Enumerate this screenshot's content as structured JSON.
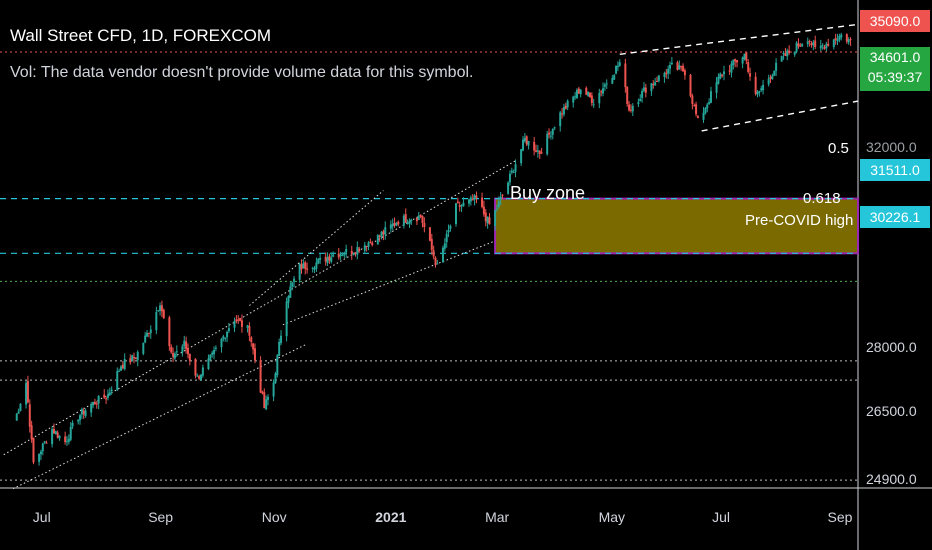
{
  "header": {
    "title": "Wall Street CFD, 1D, FOREXCOM",
    "volume_note": "Vol: The data vendor doesn't provide volume data for this symbol."
  },
  "colors": {
    "background": "#000000",
    "up_candle": "#26a69a",
    "down_candle": "#ef5350",
    "buy_zone_fill": "#7a6a00",
    "buy_zone_border": "#9c27b0",
    "fib_line": "#26c6da",
    "tag_red": "#ef5350",
    "tag_green": "#26a641",
    "tag_cyan": "#26c6da"
  },
  "price_tags": {
    "last_high": "35090.0",
    "current": "34601.0",
    "countdown": "05:39:37",
    "fib_05": "31511.0",
    "fib_0618": "30226.1"
  },
  "labels": {
    "buy_zone": "Buy zone",
    "fib_05": "0.5",
    "fib_0618": "0.618",
    "pre_covid": "Pre-COVID high"
  },
  "chart_data": {
    "type": "line",
    "title": "Wall Street CFD, 1D, FOREXCOM",
    "x_ticks": [
      "Jul",
      "Sep",
      "Nov",
      "2021",
      "Mar",
      "May",
      "Jul",
      "Sep"
    ],
    "y_ticks": [
      "28000.0",
      "26500.0",
      "24900.0"
    ],
    "y_partial_tick": "32000.0",
    "ylim": [
      24200,
      36000
    ],
    "series": [
      {
        "values": [
          [
            "2020-06-16",
            26300
          ],
          [
            "2020-06-22",
            27200
          ],
          [
            "2020-06-26",
            25300
          ],
          [
            "2020-07-06",
            26100
          ],
          [
            "2020-07-13",
            25800
          ],
          [
            "2020-07-20",
            26400
          ],
          [
            "2020-07-28",
            26700
          ],
          [
            "2020-08-05",
            26900
          ],
          [
            "2020-08-12",
            27600
          ],
          [
            "2020-08-20",
            27800
          ],
          [
            "2020-08-28",
            28500
          ],
          [
            "2020-09-02",
            29100
          ],
          [
            "2020-09-08",
            27800
          ],
          [
            "2020-09-15",
            28100
          ],
          [
            "2020-09-22",
            27300
          ],
          [
            "2020-09-30",
            27800
          ],
          [
            "2020-10-09",
            28500
          ],
          [
            "2020-10-12",
            28700
          ],
          [
            "2020-10-20",
            28400
          ],
          [
            "2020-10-28",
            26600
          ],
          [
            "2020-11-02",
            27200
          ],
          [
            "2020-11-09",
            29200
          ],
          [
            "2020-11-16",
            29900
          ],
          [
            "2020-11-25",
            30000
          ],
          [
            "2020-12-04",
            30200
          ],
          [
            "2020-12-15",
            30300
          ],
          [
            "2020-12-28",
            30600
          ],
          [
            "2021-01-08",
            31000
          ],
          [
            "2021-01-20",
            31100
          ],
          [
            "2021-01-29",
            29900
          ],
          [
            "2021-02-08",
            31300
          ],
          [
            "2021-02-19",
            31500
          ],
          [
            "2021-02-26",
            30900
          ],
          [
            "2021-03-08",
            31900
          ],
          [
            "2021-03-17",
            32900
          ],
          [
            "2021-03-25",
            32600
          ],
          [
            "2021-04-05",
            33500
          ],
          [
            "2021-04-16",
            34100
          ],
          [
            "2021-04-23",
            33800
          ],
          [
            "2021-05-07",
            34700
          ],
          [
            "2021-05-12",
            33600
          ],
          [
            "2021-05-21",
            34100
          ],
          [
            "2021-06-04",
            34600
          ],
          [
            "2021-06-11",
            34500
          ],
          [
            "2021-06-18",
            33300
          ],
          [
            "2021-06-30",
            34400
          ],
          [
            "2021-07-13",
            34900
          ],
          [
            "2021-07-19",
            33900
          ],
          [
            "2021-08-02",
            34800
          ],
          [
            "2021-08-16",
            35300
          ],
          [
            "2021-08-20",
            35000
          ],
          [
            "2021-09-03",
            35350
          ],
          [
            "2021-09-08",
            35200
          ]
        ]
      }
    ],
    "horizontal_levels": [
      {
        "name": "fib_05",
        "value": 31511.0
      },
      {
        "name": "fib_0618",
        "value": 30226.1
      },
      {
        "name": "pre_covid",
        "value": 29568
      },
      {
        "name": "support_1",
        "value": 27700
      },
      {
        "name": "support_2",
        "value": 27250
      },
      {
        "name": "support_3",
        "value": 24900
      }
    ],
    "buy_zone": {
      "from": 30226.1,
      "to": 31511.0,
      "start": "2021-03-01"
    },
    "grid": false,
    "legend": "none"
  }
}
